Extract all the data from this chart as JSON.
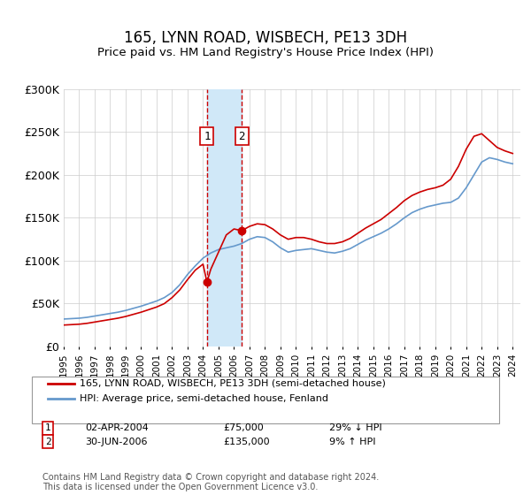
{
  "title": "165, LYNN ROAD, WISBECH, PE13 3DH",
  "subtitle": "Price paid vs. HM Land Registry's House Price Index (HPI)",
  "ylabel": "",
  "xlabel": "",
  "ylim": [
    0,
    300000
  ],
  "yticks": [
    0,
    50000,
    100000,
    150000,
    200000,
    250000,
    300000
  ],
  "ytick_labels": [
    "£0",
    "£50K",
    "£100K",
    "£150K",
    "£200K",
    "£250K",
    "£300K"
  ],
  "red_line_color": "#cc0000",
  "blue_line_color": "#6699cc",
  "shade_color": "#d0e8f8",
  "vline_color": "#cc0000",
  "marker_color": "#cc0000",
  "purchase1_date": "02-APR-2004",
  "purchase1_price": 75000,
  "purchase1_x": 2004.25,
  "purchase1_label": "29% ↓ HPI",
  "purchase2_date": "30-JUN-2006",
  "purchase2_price": 135000,
  "purchase2_x": 2006.5,
  "purchase2_label": "9% ↑ HPI",
  "legend_line1": "165, LYNN ROAD, WISBECH, PE13 3DH (semi-detached house)",
  "legend_line2": "HPI: Average price, semi-detached house, Fenland",
  "footnote": "Contains HM Land Registry data © Crown copyright and database right 2024.\nThis data is licensed under the Open Government Licence v3.0.",
  "hpi_data_x": [
    1995,
    1995.5,
    1996,
    1996.5,
    1997,
    1997.5,
    1998,
    1998.5,
    1999,
    1999.5,
    2000,
    2000.5,
    2001,
    2001.5,
    2002,
    2002.5,
    2003,
    2003.5,
    2004,
    2004.5,
    2005,
    2005.5,
    2006,
    2006.5,
    2007,
    2007.5,
    2008,
    2008.5,
    2009,
    2009.5,
    2010,
    2010.5,
    2011,
    2011.5,
    2012,
    2012.5,
    2013,
    2013.5,
    2014,
    2014.5,
    2015,
    2015.5,
    2016,
    2016.5,
    2017,
    2017.5,
    2018,
    2018.5,
    2019,
    2019.5,
    2020,
    2020.5,
    2021,
    2021.5,
    2022,
    2022.5,
    2023,
    2023.5,
    2024
  ],
  "hpi_data_y": [
    32000,
    32500,
    33000,
    34000,
    35500,
    37000,
    38500,
    40000,
    42000,
    44500,
    47000,
    50000,
    53000,
    57000,
    63000,
    72000,
    84000,
    94000,
    103000,
    109000,
    113000,
    115000,
    117000,
    120000,
    125000,
    128000,
    127000,
    122000,
    115000,
    110000,
    112000,
    113000,
    114000,
    112000,
    110000,
    109000,
    111000,
    114000,
    119000,
    124000,
    128000,
    132000,
    137000,
    143000,
    150000,
    156000,
    160000,
    163000,
    165000,
    167000,
    168000,
    173000,
    185000,
    200000,
    215000,
    220000,
    218000,
    215000,
    213000
  ],
  "red_data_x": [
    1995,
    1995.5,
    1996,
    1996.5,
    1997,
    1997.5,
    1998,
    1998.5,
    1999,
    1999.5,
    2000,
    2000.5,
    2001,
    2001.5,
    2002,
    2002.5,
    2003,
    2003.5,
    2004,
    2004.25,
    2004.5,
    2005,
    2005.5,
    2006,
    2006.5,
    2006.5,
    2007,
    2007.5,
    2008,
    2008.5,
    2009,
    2009.5,
    2010,
    2010.5,
    2011,
    2011.5,
    2012,
    2012.5,
    2013,
    2013.5,
    2014,
    2014.5,
    2015,
    2015.5,
    2016,
    2016.5,
    2017,
    2017.5,
    2018,
    2018.5,
    2019,
    2019.5,
    2020,
    2020.5,
    2021,
    2021.5,
    2022,
    2022.5,
    2023,
    2023.5,
    2024
  ],
  "red_data_y": [
    25000,
    25500,
    26000,
    27000,
    28500,
    30000,
    31500,
    33000,
    35000,
    37500,
    40000,
    43000,
    46000,
    50000,
    57000,
    66000,
    78000,
    89000,
    96000,
    75000,
    90000,
    110000,
    130000,
    137000,
    135000,
    135000,
    140000,
    143000,
    142000,
    137000,
    130000,
    125000,
    127000,
    127000,
    125000,
    122000,
    120000,
    120000,
    122000,
    126000,
    132000,
    138000,
    143000,
    148000,
    155000,
    162000,
    170000,
    176000,
    180000,
    183000,
    185000,
    188000,
    195000,
    210000,
    230000,
    245000,
    248000,
    240000,
    232000,
    228000,
    225000
  ],
  "xmin": 1995,
  "xmax": 2024.5,
  "xtick_years": [
    1995,
    1996,
    1997,
    1998,
    1999,
    2000,
    2001,
    2002,
    2003,
    2004,
    2005,
    2006,
    2007,
    2008,
    2009,
    2010,
    2011,
    2012,
    2013,
    2014,
    2015,
    2016,
    2017,
    2018,
    2019,
    2020,
    2021,
    2022,
    2023,
    2024
  ],
  "background_color": "#ffffff",
  "grid_color": "#cccccc"
}
